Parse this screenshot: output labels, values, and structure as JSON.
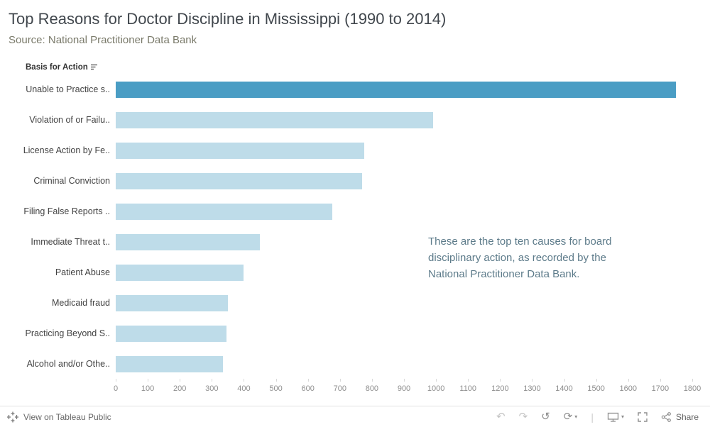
{
  "header": {
    "title": "Top Reasons for Doctor Discipline in Mississippi (1990 to 2014)",
    "subtitle": "Source: National Practitioner Data Bank"
  },
  "chart_data": {
    "type": "bar",
    "orientation": "horizontal",
    "column_header": "Basis for Action",
    "categories": [
      "Unable to Practice s..",
      "Violation of or Failu..",
      "License Action by Fe..",
      "Criminal Conviction",
      "Filing False Reports ..",
      "Immediate Threat t..",
      "Patient Abuse",
      "Medicaid fraud",
      "Practicing Beyond S..",
      "Alcohol and/or Othe.."
    ],
    "values": [
      1750,
      990,
      775,
      770,
      675,
      450,
      400,
      350,
      345,
      335
    ],
    "xlim": [
      0,
      1800
    ],
    "x_ticks": [
      0,
      100,
      200,
      300,
      400,
      500,
      600,
      700,
      800,
      900,
      1000,
      1100,
      1200,
      1300,
      1400,
      1500,
      1600,
      1700,
      1800
    ],
    "highlight_index": 0,
    "colors": {
      "highlight": "#4a9dc4",
      "bar": "#bedce9"
    },
    "grid": false,
    "legend": false,
    "annotation": "These are the top ten causes for board disciplinary action, as recorded by the National Practitioner Data Bank."
  },
  "toolbar": {
    "view_label": "View on Tableau Public",
    "share_label": "Share",
    "separator": "|",
    "icons": {
      "undo": "↶",
      "redo": "↷",
      "reset": "↺",
      "refresh": "⟳",
      "caret": "▾"
    }
  }
}
